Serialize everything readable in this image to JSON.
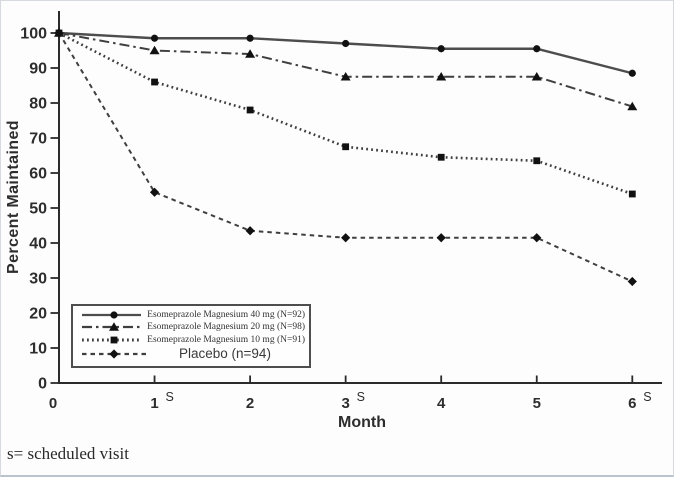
{
  "figure": {
    "footnote": "s= scheduled visit"
  },
  "chart_data": {
    "type": "line",
    "title": "",
    "xlabel": "Month",
    "ylabel": "Percent Maintained",
    "xlim": [
      0,
      6.3
    ],
    "ylim": [
      0,
      100
    ],
    "grid": false,
    "legend_position": "lower-left-box",
    "y_ticks": [
      0,
      10,
      20,
      30,
      40,
      50,
      60,
      70,
      80,
      90,
      100
    ],
    "x_ticks": [
      {
        "label": "0",
        "sup": ""
      },
      {
        "label": "1",
        "sup": "S"
      },
      {
        "label": "2",
        "sup": ""
      },
      {
        "label": "3",
        "sup": "S"
      },
      {
        "label": "4",
        "sup": ""
      },
      {
        "label": "5",
        "sup": ""
      },
      {
        "label": "6",
        "sup": "S"
      }
    ],
    "x": [
      0,
      1,
      2,
      3,
      4,
      5,
      6
    ],
    "series": [
      {
        "name": "Esomeprazole Magnesium 40 mg (N=92)",
        "values": [
          100,
          98.5,
          98.5,
          97,
          95.5,
          95.5,
          88.5
        ],
        "line": "solid",
        "marker": "circle"
      },
      {
        "name": "Esomeprazole Magnesium 20 mg (N=98)",
        "values": [
          100,
          95,
          94,
          87.5,
          87.5,
          87.5,
          79
        ],
        "line": "dash-dot",
        "marker": "triangle"
      },
      {
        "name": "Esomeprazole Magnesium 10 mg (N=91)",
        "values": [
          100,
          86,
          78,
          67.5,
          64.5,
          63.5,
          54
        ],
        "line": "dotted",
        "marker": "square"
      },
      {
        "name": "Placebo (n=94)",
        "values": [
          100,
          54.5,
          43.5,
          41.5,
          41.5,
          41.5,
          29
        ],
        "line": "dashed",
        "marker": "diamond"
      }
    ],
    "colors": {
      "axis": "#2b2b2b",
      "line": "#3f3f3f",
      "solid_line": "#4d4d4d",
      "marker": "#111111",
      "tick_label": "#2d2d2d"
    }
  }
}
